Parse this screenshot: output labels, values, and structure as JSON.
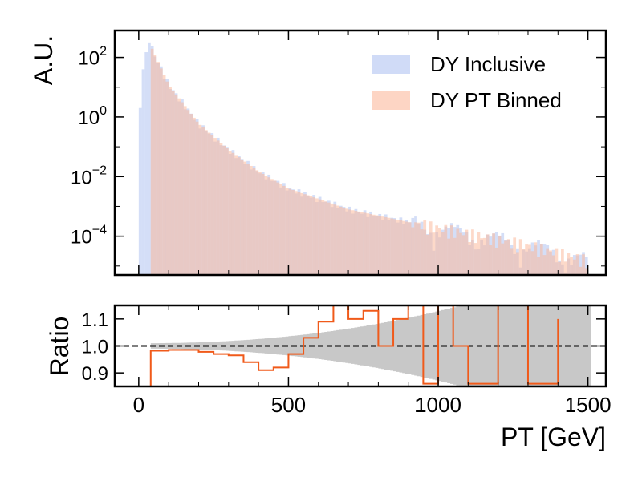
{
  "chart_data": [
    {
      "type": "bar",
      "panel": "main",
      "ylabel": "A.U.",
      "yscale": "log",
      "ylim": [
        5e-06,
        800
      ],
      "xlim": [
        -80,
        1560
      ],
      "yticks": [
        {
          "value": 100,
          "base": "10",
          "exp": "2"
        },
        {
          "value": 1,
          "base": "10",
          "exp": "0"
        },
        {
          "value": 0.01,
          "base": "10",
          "exp": "−2"
        },
        {
          "value": 0.0001,
          "base": "10",
          "exp": "−4"
        }
      ],
      "legend": {
        "placement": "top-right"
      },
      "series": [
        {
          "name": "DY Inclusive",
          "color": "#aabdf0",
          "opacity": 0.5,
          "bin_width": 10,
          "bins": [
            [
              0,
              10,
              2
            ],
            [
              10,
              20,
              40
            ],
            [
              20,
              30,
              150
            ],
            [
              30,
              40,
              300
            ]
          ],
          "shape": {
            "from": 40,
            "to": 1500,
            "peak": 250,
            "tail_points": [
              [
                40,
                250
              ],
              [
                100,
                12
              ],
              [
                200,
                0.6
              ],
              [
                300,
                0.08
              ],
              [
                400,
                0.015
              ],
              [
                500,
                0.004
              ],
              [
                700,
                0.0008
              ],
              [
                900,
                0.0003
              ],
              [
                1100,
                0.00012
              ],
              [
                1300,
                5e-05
              ],
              [
                1500,
                1.5e-05
              ]
            ]
          }
        },
        {
          "name": "DY PT Binned",
          "color": "#fcb393",
          "opacity": 0.5,
          "bin_width": 10,
          "shape": {
            "from": 40,
            "to": 1500,
            "tail_points": [
              [
                40,
                250
              ],
              [
                100,
                12
              ],
              [
                200,
                0.6
              ],
              [
                300,
                0.08
              ],
              [
                400,
                0.015
              ],
              [
                500,
                0.004
              ],
              [
                700,
                0.0008
              ],
              [
                900,
                0.0003
              ],
              [
                1100,
                0.00012
              ],
              [
                1300,
                5e-05
              ],
              [
                1500,
                1.5e-05
              ]
            ]
          }
        }
      ]
    },
    {
      "type": "line",
      "panel": "ratio",
      "ylabel": "Ratio",
      "xlabel": "PT [GeV]",
      "xlim": [
        -80,
        1560
      ],
      "ylim": [
        0.85,
        1.15
      ],
      "xticks": [
        0,
        500,
        1000,
        1500
      ],
      "yticks": [
        "0.9",
        "1.0",
        "1.1"
      ],
      "reference_line": 1.0,
      "ratio_color": "#f05a1a",
      "band_color": "#c8c8c8",
      "ratio_points": [
        [
          40,
          0.85
        ],
        [
          40,
          0.982
        ],
        [
          100,
          0.985
        ],
        [
          200,
          0.978
        ],
        [
          250,
          0.97
        ],
        [
          300,
          0.965
        ],
        [
          350,
          0.94
        ],
        [
          400,
          0.91
        ],
        [
          450,
          0.92
        ],
        [
          500,
          0.97
        ],
        [
          550,
          1.03
        ],
        [
          600,
          1.09
        ],
        [
          650,
          1.15
        ],
        [
          700,
          1.1
        ],
        [
          750,
          1.13
        ],
        [
          800,
          1.0
        ],
        [
          850,
          1.1
        ],
        [
          900,
          1.15
        ],
        [
          950,
          0.86
        ],
        [
          1000,
          1.15
        ],
        [
          1050,
          1.0
        ],
        [
          1100,
          0.86
        ],
        [
          1200,
          1.15
        ],
        [
          1300,
          0.86
        ],
        [
          1400,
          1.1
        ]
      ]
    }
  ],
  "legend_items": [
    {
      "label": "DY Inclusive",
      "color": "#aabdf0"
    },
    {
      "label": "DY PT Binned",
      "color": "#fcb393"
    }
  ]
}
